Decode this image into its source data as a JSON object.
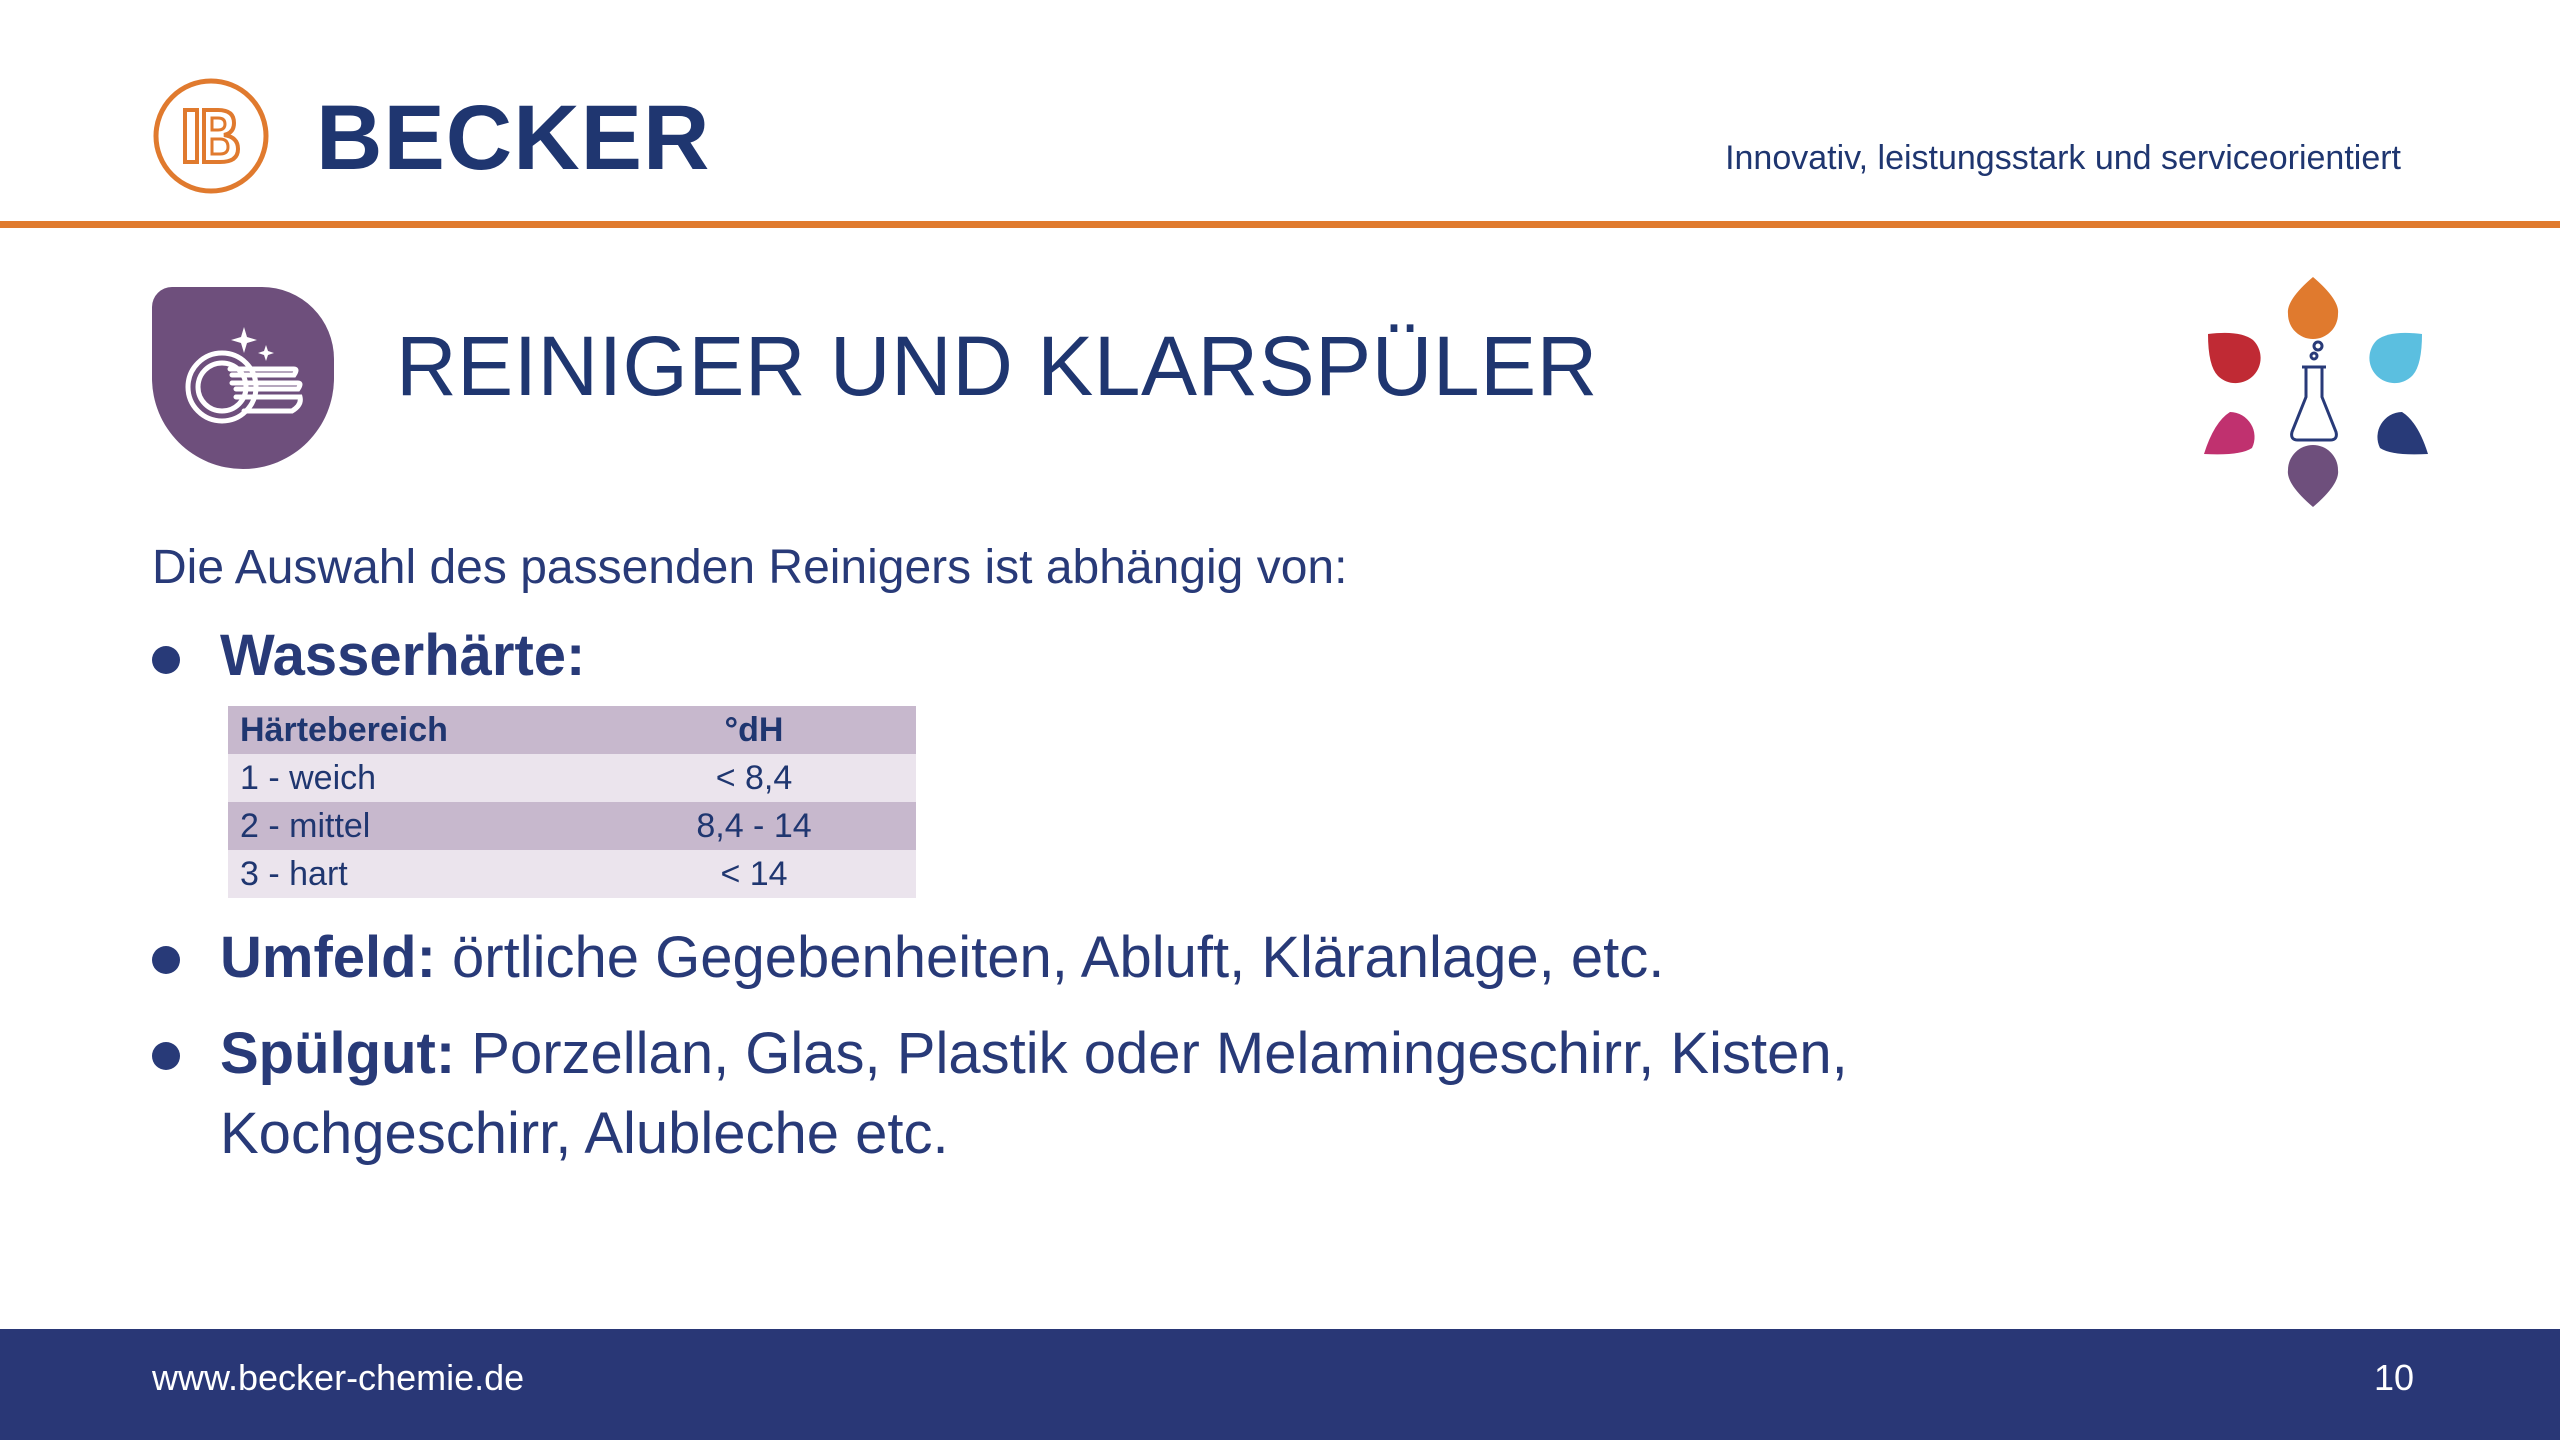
{
  "header": {
    "brand": "BECKER",
    "tagline": "Innovativ, leistungsstark und serviceorientiert",
    "logo_icon": "becker-b-logo",
    "accent_color": "#e07a2e",
    "brand_color": "#1f3670"
  },
  "slide": {
    "title": "REINIGER UND KLARSPÜLER",
    "topic_icon": "clean-dishes-icon",
    "topic_icon_color": "#6e4f7c",
    "decor_icon": "flask-droplets-icon",
    "intro": "Die Auswahl des passenden Reinigers ist abhängig von:"
  },
  "bullets": [
    {
      "label": "Wasserhärte:",
      "text": ""
    },
    {
      "label": "Umfeld:",
      "text": " örtliche Gegebenheiten, Abluft, Kläranlage, etc."
    },
    {
      "label": "Spülgut:",
      "text": " Porzellan, Glas, Plastik oder Melamingeschirr, Kisten,",
      "text2": "Kochgeschirr, Alubleche etc."
    }
  ],
  "hardness_table": {
    "headers": [
      "Härtebereich",
      "°dH"
    ],
    "rows": [
      [
        "1 - weich",
        "< 8,4"
      ],
      [
        "2 - mittel",
        "8,4 - 14"
      ],
      [
        "3 - hart",
        "< 14"
      ]
    ]
  },
  "footer": {
    "url": "www.becker-chemie.de",
    "page": "10",
    "background": "#293776"
  }
}
